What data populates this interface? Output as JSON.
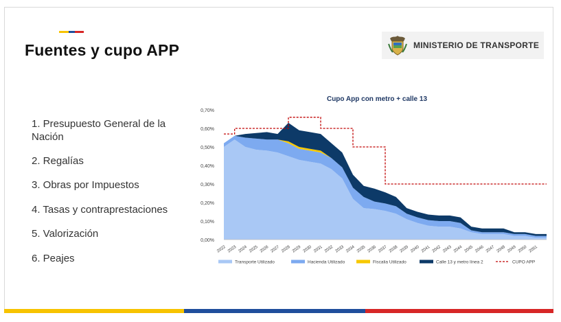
{
  "slide": {
    "title": "Fuentes y cupo APP",
    "logo_text": "MINISTERIO DE TRANSPORTE",
    "colors": {
      "yellow": "#f7c300",
      "blue": "#1f4e9c",
      "red": "#d72626"
    },
    "funding_sources": [
      "1. Presupuesto General de la Nación",
      "2. Regalías",
      "3. Obras por Impuestos",
      "4. Tasas y contraprestaciones",
      "5. Valorización",
      "6. Peajes"
    ]
  },
  "chart_data": {
    "type": "area",
    "title": "Cupo App con metro + calle 13",
    "xlabel": "",
    "ylabel": "",
    "ylim": [
      0,
      0.007
    ],
    "ytick_values": [
      0,
      0.001,
      0.002,
      0.003,
      0.004,
      0.005,
      0.006,
      0.007
    ],
    "ytick_labels": [
      "0,00%",
      "0,10%",
      "0,20%",
      "0,30%",
      "0,40%",
      "0,50%",
      "0,60%",
      "0,70%"
    ],
    "x": [
      2022,
      2023,
      2024,
      2025,
      2026,
      2027,
      2028,
      2029,
      2030,
      2031,
      2032,
      2033,
      2034,
      2035,
      2036,
      2037,
      2038,
      2039,
      2040,
      2041,
      2042,
      2043,
      2044,
      2045,
      2046,
      2047,
      2048,
      2049,
      2050,
      2051,
      2052
    ],
    "xtick_labels": [
      "2022",
      "2023",
      "2024",
      "2025",
      "2026",
      "2027",
      "2028",
      "2029",
      "2030",
      "2031",
      "2032",
      "2033",
      "2034",
      "2035",
      "2036",
      "2037",
      "2038",
      "2039",
      "2040",
      "2041",
      "2042",
      "2043",
      "2044",
      "2045",
      "2046",
      "2047",
      "2048",
      "2049",
      "2050",
      "2051"
    ],
    "legend_position": "bottom",
    "stacked": true,
    "series": [
      {
        "name": "Transporte Utilizado",
        "kind": "area",
        "color": "#a9c8f5",
        "values": [
          0.005,
          0.0054,
          0.005,
          0.00485,
          0.0048,
          0.0047,
          0.0045,
          0.0043,
          0.0042,
          0.0041,
          0.0038,
          0.0033,
          0.0022,
          0.0017,
          0.00165,
          0.00155,
          0.0014,
          0.0011,
          0.0009,
          0.00075,
          0.0007,
          0.0007,
          0.0006,
          0.0004,
          0.0003,
          0.0003,
          0.0003,
          0.0002,
          0.0002,
          0.0001,
          0.0001
        ]
      },
      {
        "name": "Hacienda Utilizado",
        "kind": "area",
        "color": "#7daaf0",
        "values": [
          0.0002,
          0.0002,
          0.0005,
          0.0006,
          0.0006,
          0.0007,
          0.0007,
          0.0006,
          0.0006,
          0.0006,
          0.0006,
          0.0006,
          0.0006,
          0.0006,
          0.0004,
          0.0004,
          0.0004,
          0.0003,
          0.0003,
          0.0003,
          0.0003,
          0.0003,
          0.0003,
          0.0001,
          0.0001,
          0.0001,
          0.0001,
          0.0001,
          0.0001,
          0.0001,
          0.0001
        ]
      },
      {
        "name": "Fiscalia Utilizado",
        "kind": "area",
        "color": "#f7c800",
        "values": [
          0,
          0,
          0,
          0,
          0,
          0,
          0.0001,
          0.0001,
          0.0001,
          0.0001,
          0,
          0,
          0,
          0,
          0,
          0,
          0,
          0,
          0,
          0,
          0,
          0,
          0,
          0,
          0,
          0,
          0,
          0,
          0,
          0,
          0
        ]
      },
      {
        "name": "Calle 13 y metro línea 2",
        "kind": "area",
        "color": "#0d3a68",
        "values": [
          0,
          0,
          0.0002,
          0.0003,
          0.0004,
          0.0003,
          0.001,
          0.0009,
          0.0009,
          0.0009,
          0.0008,
          0.0008,
          0.0007,
          0.0006,
          0.0007,
          0.0006,
          0.0005,
          0.0003,
          0.0003,
          0.0003,
          0.0003,
          0.0003,
          0.0003,
          0.0002,
          0.0002,
          0.0002,
          0.0002,
          0.0001,
          0.0001,
          0.0001,
          0.0001
        ]
      },
      {
        "name": "CUPO APP",
        "kind": "line",
        "dashed": true,
        "color": "#c00000",
        "values": [
          0.0057,
          0.006,
          0.006,
          0.006,
          0.006,
          0.006,
          0.0066,
          0.0066,
          0.0066,
          0.006,
          0.006,
          0.006,
          0.005,
          0.005,
          0.005,
          0.003,
          0.003,
          0.003,
          0.003,
          0.003,
          0.003,
          0.003,
          0.003,
          0.003,
          0.003,
          0.003,
          0.003,
          0.003,
          0.003,
          0.003,
          0.003
        ]
      }
    ]
  }
}
